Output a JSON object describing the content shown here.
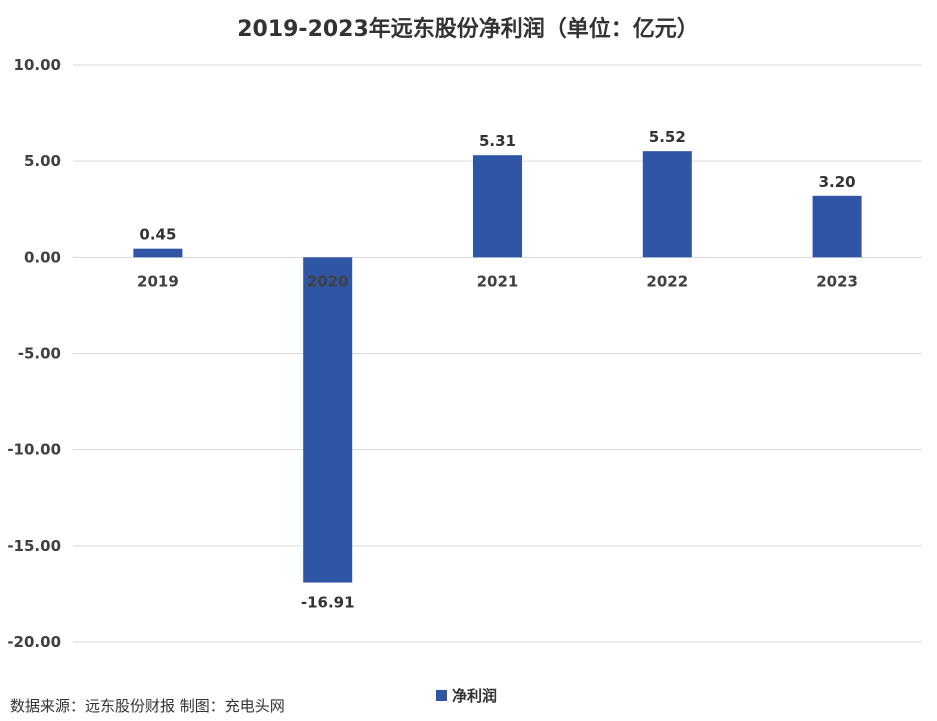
{
  "chart_data": {
    "type": "bar",
    "title": "2019-2023年远东股份净利润（单位：亿元）",
    "categories": [
      "2019",
      "2020",
      "2021",
      "2022",
      "2023"
    ],
    "series": [
      {
        "name": "净利润",
        "values": [
          0.45,
          -16.91,
          5.31,
          5.52,
          3.2
        ],
        "color": "#2F55A4"
      }
    ],
    "data_labels": [
      "0.45",
      "-16.91",
      "5.31",
      "5.52",
      "3.20"
    ],
    "ylim": [
      -20,
      10
    ],
    "yticks": [
      10,
      5,
      0,
      -5,
      -10,
      -15,
      -20
    ],
    "ytick_labels": [
      "10.00",
      "5.00",
      "0.00",
      "-5.00",
      "-10.00",
      "-15.00",
      "-20.00"
    ],
    "grid": true,
    "legend_position": "bottom",
    "xlabel": "",
    "ylabel": ""
  },
  "footer": {
    "source": "数据来源：远东股份财报  制图：充电头网"
  }
}
